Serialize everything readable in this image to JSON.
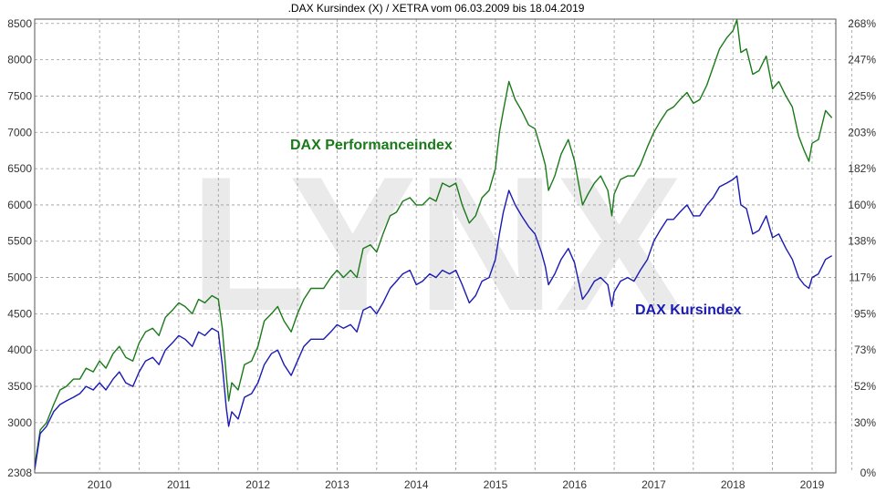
{
  "chart_data": {
    "type": "line",
    "title": ".DAX Kursindex (X) / XETRA vom 06.03.2009 bis 18.04.2019",
    "watermark": "LYNX",
    "x_range": [
      2009.18,
      2019.3
    ],
    "x_ticks": [
      "2010",
      "2011",
      "2012",
      "2013",
      "2014",
      "2015",
      "2016",
      "2017",
      "2018",
      "2019"
    ],
    "y_left": {
      "ticks": [
        "8500",
        "8000",
        "7500",
        "7000",
        "6500",
        "6000",
        "5500",
        "5000",
        "4500",
        "4000",
        "3500",
        "3000",
        "2308"
      ],
      "range": [
        2308,
        8560
      ]
    },
    "y_right": {
      "ticks": [
        "268%",
        "247%",
        "225%",
        "203%",
        "182%",
        "160%",
        "138%",
        "117%",
        "95%",
        "73%",
        "52%",
        "30%",
        "0%"
      ]
    },
    "grid": true,
    "colors": {
      "performance": "#1a7a1a",
      "kurs": "#1a1ab3",
      "grid": "#999999"
    },
    "series": [
      {
        "name": "DAX Performanceindex",
        "color": "#1a7a1a",
        "x": [
          2009.18,
          2009.25,
          2009.33,
          2009.42,
          2009.5,
          2009.58,
          2009.67,
          2009.75,
          2009.83,
          2009.92,
          2010.0,
          2010.08,
          2010.17,
          2010.25,
          2010.33,
          2010.42,
          2010.5,
          2010.58,
          2010.67,
          2010.75,
          2010.83,
          2010.92,
          2011.0,
          2011.08,
          2011.17,
          2011.25,
          2011.33,
          2011.42,
          2011.5,
          2011.55,
          2011.6,
          2011.63,
          2011.67,
          2011.75,
          2011.83,
          2011.92,
          2012.0,
          2012.08,
          2012.17,
          2012.25,
          2012.33,
          2012.42,
          2012.5,
          2012.58,
          2012.67,
          2012.75,
          2012.83,
          2012.92,
          2013.0,
          2013.08,
          2013.17,
          2013.25,
          2013.33,
          2013.42,
          2013.5,
          2013.58,
          2013.67,
          2013.75,
          2013.83,
          2013.92,
          2014.0,
          2014.08,
          2014.17,
          2014.25,
          2014.33,
          2014.42,
          2014.5,
          2014.58,
          2014.67,
          2014.75,
          2014.83,
          2014.92,
          2015.0,
          2015.05,
          2015.1,
          2015.17,
          2015.25,
          2015.33,
          2015.42,
          2015.5,
          2015.58,
          2015.63,
          2015.67,
          2015.75,
          2015.83,
          2015.92,
          2016.0,
          2016.05,
          2016.1,
          2016.17,
          2016.25,
          2016.33,
          2016.42,
          2016.47,
          2016.5,
          2016.58,
          2016.67,
          2016.75,
          2016.83,
          2016.92,
          2017.0,
          2017.08,
          2017.17,
          2017.25,
          2017.33,
          2017.42,
          2017.5,
          2017.58,
          2017.67,
          2017.75,
          2017.83,
          2017.92,
          2018.0,
          2018.05,
          2018.1,
          2018.17,
          2018.25,
          2018.33,
          2018.42,
          2018.5,
          2018.58,
          2018.67,
          2018.75,
          2018.83,
          2018.9,
          2018.96,
          2019.0,
          2019.08,
          2019.17,
          2019.25
        ],
        "values": [
          2400,
          2900,
          3000,
          3250,
          3450,
          3500,
          3600,
          3600,
          3750,
          3700,
          3850,
          3750,
          3950,
          4050,
          3900,
          3850,
          4100,
          4250,
          4300,
          4200,
          4450,
          4550,
          4650,
          4600,
          4500,
          4700,
          4650,
          4750,
          4700,
          4300,
          3650,
          3300,
          3550,
          3450,
          3800,
          3850,
          4050,
          4400,
          4500,
          4600,
          4400,
          4250,
          4500,
          4700,
          4850,
          4850,
          4850,
          5000,
          5100,
          5000,
          5100,
          5000,
          5400,
          5450,
          5350,
          5600,
          5850,
          5900,
          6050,
          6100,
          6000,
          6000,
          6100,
          6050,
          6300,
          6250,
          6300,
          6000,
          5750,
          5850,
          6100,
          6200,
          6500,
          7000,
          7300,
          7700,
          7450,
          7300,
          7100,
          7050,
          6750,
          6550,
          6200,
          6400,
          6700,
          6900,
          6600,
          6300,
          6000,
          6150,
          6300,
          6400,
          6200,
          5850,
          6150,
          6350,
          6400,
          6400,
          6550,
          6800,
          7000,
          7150,
          7300,
          7350,
          7450,
          7550,
          7400,
          7450,
          7650,
          7900,
          8150,
          8300,
          8400,
          8550,
          8100,
          8150,
          7800,
          7850,
          8050,
          7600,
          7700,
          7500,
          7350,
          6950,
          6750,
          6600,
          6850,
          6900,
          7300,
          7200
        ]
      },
      {
        "name": "DAX Kursindex",
        "color": "#1a1ab3",
        "x": [
          2009.18,
          2009.25,
          2009.33,
          2009.42,
          2009.5,
          2009.58,
          2009.67,
          2009.75,
          2009.83,
          2009.92,
          2010.0,
          2010.08,
          2010.17,
          2010.25,
          2010.33,
          2010.42,
          2010.5,
          2010.58,
          2010.67,
          2010.75,
          2010.83,
          2010.92,
          2011.0,
          2011.08,
          2011.17,
          2011.25,
          2011.33,
          2011.42,
          2011.5,
          2011.55,
          2011.6,
          2011.63,
          2011.67,
          2011.75,
          2011.83,
          2011.92,
          2012.0,
          2012.08,
          2012.17,
          2012.25,
          2012.33,
          2012.42,
          2012.5,
          2012.58,
          2012.67,
          2012.75,
          2012.83,
          2012.92,
          2013.0,
          2013.08,
          2013.17,
          2013.25,
          2013.33,
          2013.42,
          2013.5,
          2013.58,
          2013.67,
          2013.75,
          2013.83,
          2013.92,
          2014.0,
          2014.08,
          2014.17,
          2014.25,
          2014.33,
          2014.42,
          2014.5,
          2014.58,
          2014.67,
          2014.75,
          2014.83,
          2014.92,
          2015.0,
          2015.05,
          2015.1,
          2015.17,
          2015.25,
          2015.33,
          2015.42,
          2015.5,
          2015.58,
          2015.63,
          2015.67,
          2015.75,
          2015.83,
          2015.92,
          2016.0,
          2016.05,
          2016.1,
          2016.17,
          2016.25,
          2016.33,
          2016.42,
          2016.47,
          2016.5,
          2016.58,
          2016.67,
          2016.75,
          2016.83,
          2016.92,
          2017.0,
          2017.08,
          2017.17,
          2017.25,
          2017.33,
          2017.42,
          2017.5,
          2017.58,
          2017.67,
          2017.75,
          2017.83,
          2017.92,
          2018.0,
          2018.05,
          2018.1,
          2018.17,
          2018.25,
          2018.33,
          2018.42,
          2018.5,
          2018.58,
          2018.67,
          2018.75,
          2018.83,
          2018.9,
          2018.96,
          2019.0,
          2019.08,
          2019.17,
          2019.25
        ],
        "values": [
          2350,
          2850,
          2950,
          3150,
          3250,
          3300,
          3350,
          3400,
          3500,
          3450,
          3550,
          3450,
          3600,
          3700,
          3550,
          3500,
          3700,
          3850,
          3900,
          3800,
          4000,
          4100,
          4200,
          4150,
          4050,
          4250,
          4200,
          4300,
          4250,
          3800,
          3200,
          2950,
          3150,
          3050,
          3350,
          3400,
          3550,
          3800,
          3950,
          4000,
          3800,
          3650,
          3850,
          4050,
          4150,
          4150,
          4150,
          4250,
          4350,
          4300,
          4350,
          4250,
          4550,
          4600,
          4500,
          4650,
          4850,
          4950,
          5050,
          5100,
          4900,
          4950,
          5050,
          5000,
          5100,
          5050,
          5100,
          4900,
          4650,
          4750,
          4950,
          5000,
          5250,
          5600,
          5900,
          6200,
          6000,
          5850,
          5700,
          5600,
          5350,
          5150,
          4900,
          5050,
          5250,
          5400,
          5200,
          4950,
          4700,
          4800,
          4950,
          5000,
          4900,
          4600,
          4800,
          4950,
          5000,
          4950,
          5100,
          5250,
          5500,
          5650,
          5800,
          5800,
          5900,
          6000,
          5850,
          5850,
          6000,
          6100,
          6250,
          6300,
          6350,
          6400,
          6000,
          5950,
          5600,
          5650,
          5850,
          5550,
          5600,
          5400,
          5250,
          5000,
          4900,
          4850,
          5000,
          5050,
          5250,
          5300
        ]
      }
    ]
  }
}
